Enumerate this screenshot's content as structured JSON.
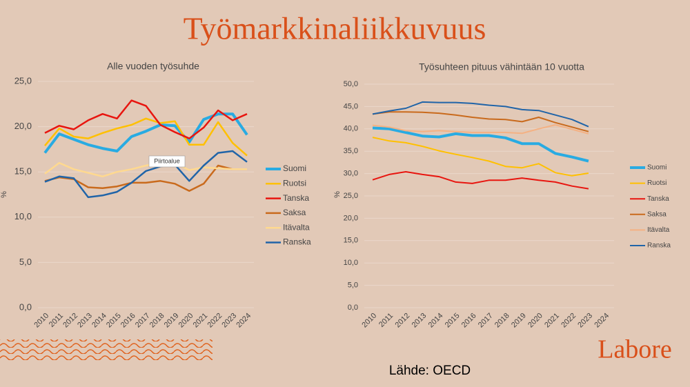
{
  "title": "Työmarkkinaliikkuvuus",
  "source": "Lähde: OECD",
  "logo": "Labore",
  "tooltip": "Piirtoalue",
  "chart_data": [
    {
      "type": "line",
      "title": "Alle vuoden työsuhde",
      "y_label": "%",
      "categories": [
        "2010",
        "2011",
        "2012",
        "2013",
        "2014",
        "2015",
        "2016",
        "2017",
        "2018",
        "2019",
        "2020",
        "2021",
        "2022",
        "2023",
        "2024"
      ],
      "ylim": [
        0,
        25
      ],
      "yticks": [
        {
          "value": 0,
          "label": "0,0"
        },
        {
          "value": 5,
          "label": "5,0"
        },
        {
          "value": 10,
          "label": "10,0"
        },
        {
          "value": 15,
          "label": "15,0"
        },
        {
          "value": 20,
          "label": "20,0"
        },
        {
          "value": 25,
          "label": "25,0"
        }
      ],
      "grid": true,
      "legend": "right",
      "series": [
        {
          "name": "Suomi",
          "color": "#29abe2",
          "line_width": 4,
          "values": [
            17.1,
            19.2,
            18.6,
            18.0,
            17.6,
            17.3,
            18.9,
            19.5,
            20.2,
            20.1,
            18.3,
            20.8,
            21.4,
            21.4,
            19.1
          ]
        },
        {
          "name": "Ruotsi",
          "color": "#ffc000",
          "line_width": 2.5,
          "values": [
            17.9,
            19.8,
            18.9,
            18.7,
            19.3,
            19.8,
            20.2,
            20.9,
            20.4,
            20.6,
            18.0,
            18.0,
            20.5,
            18.2,
            16.8
          ]
        },
        {
          "name": "Tanska",
          "color": "#e8150f",
          "line_width": 2.5,
          "values": [
            19.3,
            20.1,
            19.7,
            20.7,
            21.4,
            20.9,
            22.9,
            22.3,
            20.2,
            19.4,
            18.7,
            19.9,
            21.8,
            20.7,
            21.4
          ]
        },
        {
          "name": "Saksa",
          "color": "#c96a1c",
          "line_width": 2.5,
          "values": [
            14.0,
            14.4,
            14.2,
            13.3,
            13.2,
            13.4,
            13.8,
            13.8,
            14.0,
            13.7,
            12.9,
            13.7,
            15.7,
            15.3,
            15.3
          ]
        },
        {
          "name": "Itävalta",
          "color": "#ffd98f",
          "line_width": 2.5,
          "values": [
            14.8,
            16.0,
            15.3,
            14.9,
            14.5,
            15.0,
            15.3,
            15.7,
            16.0,
            16.0,
            15.2,
            15.5,
            15.4,
            15.3,
            15.3
          ]
        },
        {
          "name": "Ranska",
          "color": "#2064a8",
          "line_width": 2.5,
          "values": [
            13.9,
            14.5,
            14.3,
            12.2,
            12.4,
            12.8,
            13.8,
            15.1,
            15.6,
            15.8,
            14.0,
            15.7,
            17.1,
            17.3,
            16.1
          ]
        }
      ]
    },
    {
      "type": "line",
      "title": "Työsuhteen pituus vähintään 10 vuotta",
      "y_label": "%",
      "categories": [
        "2010",
        "2011",
        "2012",
        "2013",
        "2014",
        "2015",
        "2016",
        "2017",
        "2018",
        "2019",
        "2020",
        "2021",
        "2022",
        "2023",
        "2024"
      ],
      "ylim": [
        0,
        50
      ],
      "yticks": [
        {
          "value": 0,
          "label": "0,0"
        },
        {
          "value": 5,
          "label": "5,0"
        },
        {
          "value": 10,
          "label": "10,0"
        },
        {
          "value": 15,
          "label": "15,0"
        },
        {
          "value": 20,
          "label": "20,0"
        },
        {
          "value": 25,
          "label": "25,0"
        },
        {
          "value": 30,
          "label": "30,0"
        },
        {
          "value": 35,
          "label": "35,0"
        },
        {
          "value": 40,
          "label": "40,0"
        },
        {
          "value": 45,
          "label": "45,0"
        },
        {
          "value": 50,
          "label": "50,0"
        }
      ],
      "grid": true,
      "legend": "right",
      "series": [
        {
          "name": "Suomi",
          "color": "#29abe2",
          "line_width": 4,
          "values": [
            40.2,
            40.0,
            39.2,
            38.4,
            38.2,
            38.9,
            38.5,
            38.5,
            38.0,
            36.7,
            36.7,
            34.5,
            33.7,
            32.8,
            null
          ]
        },
        {
          "name": "Ruotsi",
          "color": "#ffc000",
          "line_width": 2,
          "values": [
            38.1,
            37.3,
            36.9,
            36.1,
            35.1,
            34.3,
            33.6,
            32.8,
            31.6,
            31.3,
            32.2,
            30.2,
            29.5,
            30.1,
            null
          ]
        },
        {
          "name": "Tanska",
          "color": "#e8150f",
          "line_width": 2,
          "values": [
            28.6,
            29.8,
            30.4,
            29.8,
            29.3,
            28.1,
            27.8,
            28.5,
            28.5,
            29.0,
            28.5,
            28.1,
            27.2,
            26.6,
            null
          ]
        },
        {
          "name": "Saksa",
          "color": "#c96a1c",
          "line_width": 2,
          "values": [
            43.3,
            43.8,
            43.8,
            43.7,
            43.5,
            43.1,
            42.6,
            42.2,
            42.1,
            41.6,
            42.6,
            41.4,
            40.4,
            39.4,
            null
          ]
        },
        {
          "name": "Itävalta",
          "color": "#f4b183",
          "line_width": 2,
          "values": [
            40.8,
            40.4,
            39.6,
            39.4,
            39.6,
            39.4,
            39.2,
            39.2,
            39.2,
            39.0,
            40.0,
            40.9,
            39.9,
            38.9,
            null
          ]
        },
        {
          "name": "Ranska",
          "color": "#2064a8",
          "line_width": 2,
          "values": [
            43.3,
            44.0,
            44.6,
            46.0,
            45.9,
            45.9,
            45.7,
            45.3,
            45.0,
            44.3,
            44.1,
            43.1,
            42.1,
            40.5,
            null
          ]
        }
      ]
    }
  ]
}
